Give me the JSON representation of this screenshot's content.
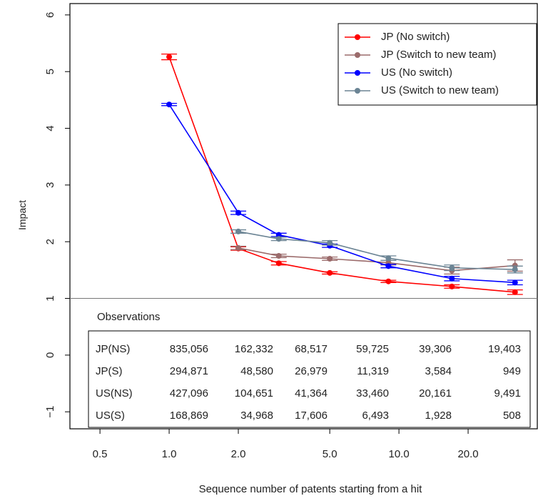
{
  "chart_data": {
    "type": "line",
    "title": "",
    "xlabel": "Sequence number of patents starting from a hit",
    "ylabel": "Impact",
    "x_scale": "log",
    "xlim": [
      0.37,
      40
    ],
    "ylim": [
      -1.3,
      6.2
    ],
    "x_ticks": [
      0.5,
      1.0,
      2.0,
      5.0,
      10.0,
      20.0
    ],
    "x_tick_labels": [
      "0.5",
      "1.0",
      "2.0",
      "5.0",
      "10.0",
      "20.0"
    ],
    "y_ticks": [
      -1,
      0,
      1,
      2,
      3,
      4,
      5,
      6
    ],
    "y_tick_labels": [
      "−1",
      "0",
      "1",
      "2",
      "3",
      "4",
      "5",
      "6"
    ],
    "reference_line_y": 1,
    "legend_position": "top-right",
    "series": [
      {
        "name": "JP (No switch)",
        "color": "#ff0000",
        "x": [
          1,
          2,
          3,
          5,
          9,
          17,
          32
        ],
        "y": [
          5.26,
          1.88,
          1.62,
          1.45,
          1.3,
          1.21,
          1.11
        ],
        "err": [
          0.05,
          0.03,
          0.03,
          0.02,
          0.02,
          0.03,
          0.04
        ]
      },
      {
        "name": "JP (Switch to new team)",
        "color": "#9b6b6b",
        "x": [
          2,
          3,
          5,
          9,
          17,
          32
        ],
        "y": [
          1.89,
          1.75,
          1.7,
          1.63,
          1.49,
          1.58
        ],
        "err": [
          0.03,
          0.03,
          0.03,
          0.04,
          0.06,
          0.1
        ]
      },
      {
        "name": "US (No switch)",
        "color": "#0000ff",
        "x": [
          1,
          2,
          3,
          5,
          9,
          17,
          32
        ],
        "y": [
          4.42,
          2.51,
          2.12,
          1.93,
          1.57,
          1.35,
          1.28
        ],
        "err": [
          0.02,
          0.03,
          0.03,
          0.03,
          0.03,
          0.04,
          0.04
        ]
      },
      {
        "name": "US (Switch to new team)",
        "color": "#6b8494",
        "x": [
          2,
          3,
          5,
          9,
          17,
          32
        ],
        "y": [
          2.18,
          2.05,
          1.98,
          1.71,
          1.54,
          1.51
        ],
        "err": [
          0.03,
          0.03,
          0.04,
          0.04,
          0.05,
          0.06
        ]
      }
    ],
    "observations": {
      "title": "Observations",
      "rows": [
        {
          "label": "JP(NS)",
          "values": [
            "835,056",
            "162,332",
            "68,517",
            "59,725",
            "39,306",
            "19,403"
          ]
        },
        {
          "label": "JP(S)",
          "values": [
            "294,871",
            "48,580",
            "26,979",
            "11,319",
            "3,584",
            "949"
          ]
        },
        {
          "label": "US(NS)",
          "values": [
            "427,096",
            "104,651",
            "41,364",
            "33,460",
            "20,161",
            "9,491"
          ]
        },
        {
          "label": "US(S)",
          "values": [
            "168,869",
            "34,968",
            "17,606",
            "6,493",
            "1,928",
            "508"
          ]
        }
      ]
    }
  }
}
